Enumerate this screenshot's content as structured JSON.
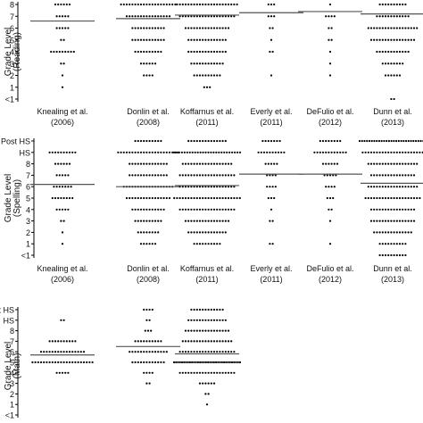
{
  "chart_data": [
    {
      "type": "scatter",
      "subtype": "dot-strip",
      "ylabel": "Grade Level",
      "ylabel_sub": "(Reading)",
      "y_ticks": [
        "<1",
        "1",
        "2",
        "3",
        "4",
        "5",
        "6",
        "7",
        "8"
      ],
      "grid": false,
      "groups": [
        {
          "label": "Knealing et al.",
          "year": "(2006)",
          "median": 6.6,
          "counts": {
            "1": 1,
            "2": 1,
            "3": 2,
            "4": 9,
            "5": 2,
            "6": 5,
            "7": 5,
            "8": 6
          }
        },
        {
          "label": "Donlin et al.",
          "year": "(2008)",
          "median": 6.8,
          "counts": {
            "2": 4,
            "3": 6,
            "4": 10,
            "5": 12,
            "6": 12,
            "7": 16,
            "8": 20
          }
        },
        {
          "label": "Koffarnus et al.",
          "year": "(2011)",
          "median": 7.1,
          "counts": {
            "1": 3,
            "2": 10,
            "3": 12,
            "4": 14,
            "5": 14,
            "6": 16,
            "7": 20,
            "8": 22
          }
        },
        {
          "label": "Everly et al.",
          "year": "(2011)",
          "median": 7.3,
          "counts": {
            "2": 1,
            "4": 2,
            "5": 1,
            "6": 2,
            "7": 3,
            "8": 3
          }
        },
        {
          "label": "DeFulio et al.",
          "year": "(2012)",
          "median": 7.4,
          "counts": {
            "2": 1,
            "3": 1,
            "4": 1,
            "5": 2,
            "6": 2,
            "7": 4,
            "8": 1
          }
        },
        {
          "label": "Dunn et al.",
          "year": "(2013)",
          "median": 7.2,
          "counts": {
            "<1": 2,
            "2": 6,
            "3": 8,
            "4": 12,
            "5": 16,
            "6": 18,
            "7": 12,
            "8": 10
          }
        }
      ]
    },
    {
      "type": "scatter",
      "subtype": "dot-strip",
      "ylabel": "Grade Level",
      "ylabel_sub": "(Spelling)",
      "y_ticks": [
        "<1",
        "1",
        "2",
        "3",
        "4",
        "5",
        "6",
        "7",
        "8",
        "HS",
        "Post HS"
      ],
      "grid": false,
      "groups": [
        {
          "label": "Knealing et al.",
          "year": "(2006)",
          "median": 6.2,
          "counts": {
            "1": 1,
            "2": 1,
            "3": 2,
            "4": 5,
            "5": 8,
            "6": 7,
            "7": 5,
            "8": 6,
            "HS": 10
          }
        },
        {
          "label": "Donlin et al.",
          "year": "(2008)",
          "median": 6.0,
          "counts": {
            "1": 6,
            "2": 8,
            "3": 10,
            "4": 12,
            "5": 16,
            "6": 18,
            "7": 14,
            "8": 14,
            "HS": 22,
            "Post HS": 10
          }
        },
        {
          "label": "Koffarnus et al.",
          "year": "(2011)",
          "median": 6.1,
          "counts": {
            "1": 10,
            "2": 14,
            "3": 16,
            "4": 20,
            "5": 24,
            "6": 20,
            "7": 20,
            "8": 18,
            "HS": 26,
            "Post HS": 14
          }
        },
        {
          "label": "Everly et al.",
          "year": "(2011)",
          "median": 7.1,
          "counts": {
            "1": 2,
            "3": 2,
            "4": 1,
            "5": 3,
            "6": 4,
            "7": 4,
            "8": 5,
            "HS": 10,
            "Post HS": 7
          }
        },
        {
          "label": "DeFulio et al.",
          "year": "(2012)",
          "median": 7.1,
          "counts": {
            "1": 1,
            "3": 1,
            "4": 2,
            "5": 3,
            "6": 4,
            "7": 5,
            "8": 6,
            "HS": 12,
            "Post HS": 8
          }
        },
        {
          "label": "Dunn et al.",
          "year": "(2013)",
          "median": 6.3,
          "counts": {
            "<1": 10,
            "1": 10,
            "2": 14,
            "3": 16,
            "4": 16,
            "5": 20,
            "6": 18,
            "7": 16,
            "8": 18,
            "HS": 22,
            "Post HS": 28
          }
        }
      ]
    },
    {
      "type": "scatter",
      "subtype": "dot-strip",
      "ylabel": "Grade Level",
      "ylabel_sub": "(Math)",
      "y_ticks": [
        "<1",
        "1",
        "2",
        "3",
        "4",
        "5",
        "6",
        "7",
        "8",
        "HS",
        "Post HS"
      ],
      "grid": false,
      "groups": [
        {
          "label": "",
          "year": "",
          "median": 5.7,
          "counts": {
            "4": 5,
            "5": 22,
            "6": 16,
            "7": 10,
            "HS": 2
          }
        },
        {
          "label": "",
          "year": "",
          "median": 6.5,
          "counts": {
            "3": 2,
            "4": 4,
            "5": 12,
            "6": 14,
            "7": 10,
            "8": 3,
            "HS": 2,
            "Post HS": 4
          }
        },
        {
          "label": "",
          "year": "",
          "median": 5.8,
          "counts": {
            "1": 1,
            "2": 2,
            "3": 6,
            "4": 20,
            "5": 34,
            "6": 20,
            "7": 18,
            "8": 16,
            "HS": 14,
            "Post HS": 12
          }
        }
      ]
    }
  ]
}
